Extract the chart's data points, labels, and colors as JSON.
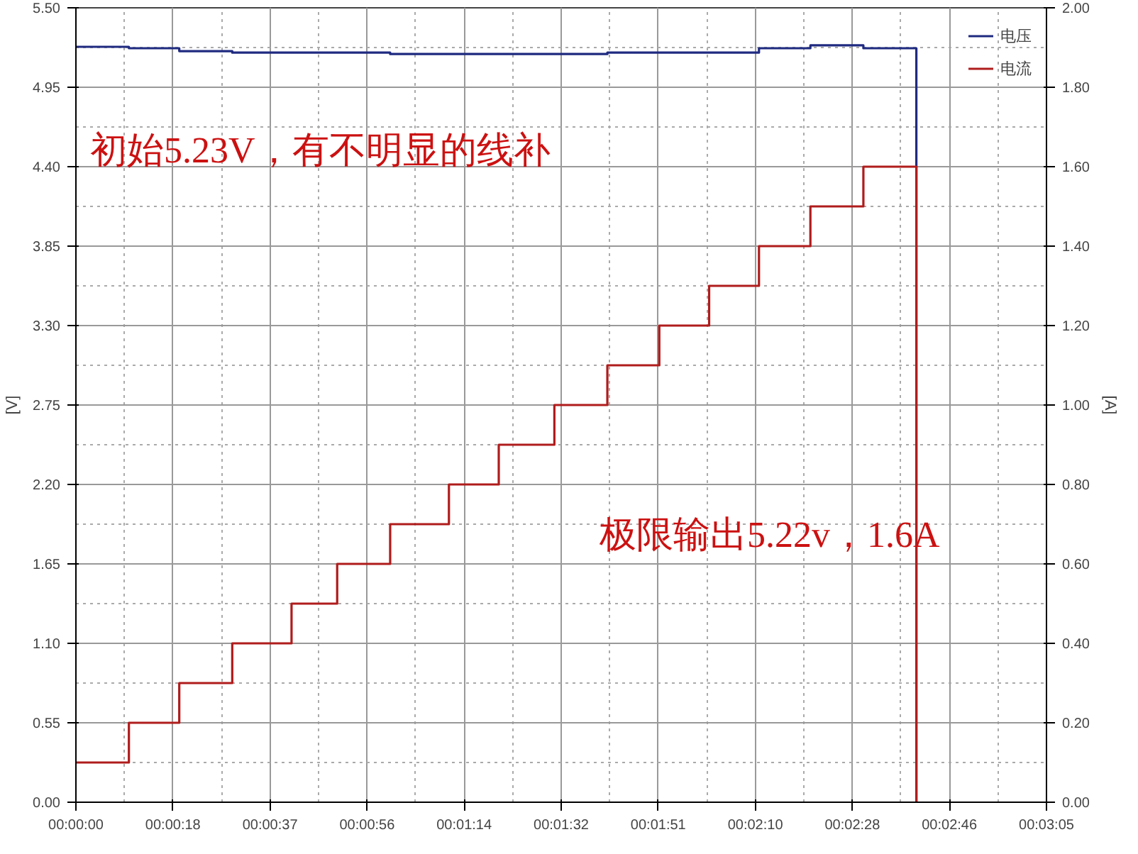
{
  "chart_data": {
    "type": "step",
    "ylabel": "[V]",
    "y2label": "[A]",
    "xlim": [
      0,
      185
    ],
    "ylim": [
      0,
      5.5
    ],
    "y2lim": [
      0,
      2
    ],
    "xticks": [
      {
        "value": 0,
        "label": "00:00:00"
      },
      {
        "value": 18.5,
        "label": "00:00:18"
      },
      {
        "value": 37,
        "label": "00:00:37"
      },
      {
        "value": 55.5,
        "label": "00:00:56"
      },
      {
        "value": 74,
        "label": "00:01:14"
      },
      {
        "value": 92.5,
        "label": "00:01:32"
      },
      {
        "value": 111,
        "label": "00:01:51"
      },
      {
        "value": 129.5,
        "label": "00:02:10"
      },
      {
        "value": 148,
        "label": "00:02:28"
      },
      {
        "value": 166.5,
        "label": "00:02:46"
      },
      {
        "value": 185,
        "label": "00:03:05"
      }
    ],
    "yticks": [
      {
        "value": 0,
        "label": "0.00"
      },
      {
        "value": 0.55,
        "label": "0.55"
      },
      {
        "value": 1.1,
        "label": "1.10"
      },
      {
        "value": 1.65,
        "label": "1.65"
      },
      {
        "value": 2.2,
        "label": "2.20"
      },
      {
        "value": 2.75,
        "label": "2.75"
      },
      {
        "value": 3.3,
        "label": "3.30"
      },
      {
        "value": 3.85,
        "label": "3.85"
      },
      {
        "value": 4.4,
        "label": "4.40"
      },
      {
        "value": 4.95,
        "label": "4.95"
      },
      {
        "value": 5.5,
        "label": "5.50"
      }
    ],
    "y2ticks": [
      {
        "value": 0,
        "label": "0.00"
      },
      {
        "value": 0.2,
        "label": "0.20"
      },
      {
        "value": 0.4,
        "label": "0.40"
      },
      {
        "value": 0.6,
        "label": "0.60"
      },
      {
        "value": 0.8,
        "label": "0.80"
      },
      {
        "value": 1.0,
        "label": "1.00"
      },
      {
        "value": 1.2,
        "label": "1.20"
      },
      {
        "value": 1.4,
        "label": "1.40"
      },
      {
        "value": 1.6,
        "label": "1.60"
      },
      {
        "value": 1.8,
        "label": "1.80"
      },
      {
        "value": 2.0,
        "label": "2.00"
      }
    ],
    "series": [
      {
        "name": "电压",
        "color": "#1f2a80",
        "x": [
          0,
          10.1,
          19.7,
          29.8,
          41.1,
          49.8,
          59.9,
          71.1,
          80.6,
          91.2,
          101.3,
          111.2,
          120.7,
          130.2,
          140,
          150.1,
          160.2
        ],
        "values": [
          5.23,
          5.22,
          5.2,
          5.19,
          5.19,
          5.19,
          5.18,
          5.18,
          5.18,
          5.18,
          5.19,
          5.19,
          5.19,
          5.22,
          5.24,
          5.22,
          0
        ]
      },
      {
        "name": "电流",
        "color": "#b01c1c",
        "axis": "y2",
        "x": [
          0,
          10.1,
          19.7,
          29.8,
          41.1,
          49.8,
          59.9,
          71.1,
          80.6,
          91.2,
          101.3,
          111.2,
          120.7,
          130.2,
          140,
          150.1,
          160.2
        ],
        "values": [
          0.1,
          0.2,
          0.3,
          0.4,
          0.5,
          0.6,
          0.7,
          0.8,
          0.9,
          1.0,
          1.1,
          1.2,
          1.3,
          1.4,
          1.5,
          1.6,
          0
        ]
      }
    ],
    "annotations": [
      "初始5.23V，有不明显的线补",
      "极限输出5.22v，1.6A"
    ],
    "grid": true,
    "legend": "top right"
  }
}
